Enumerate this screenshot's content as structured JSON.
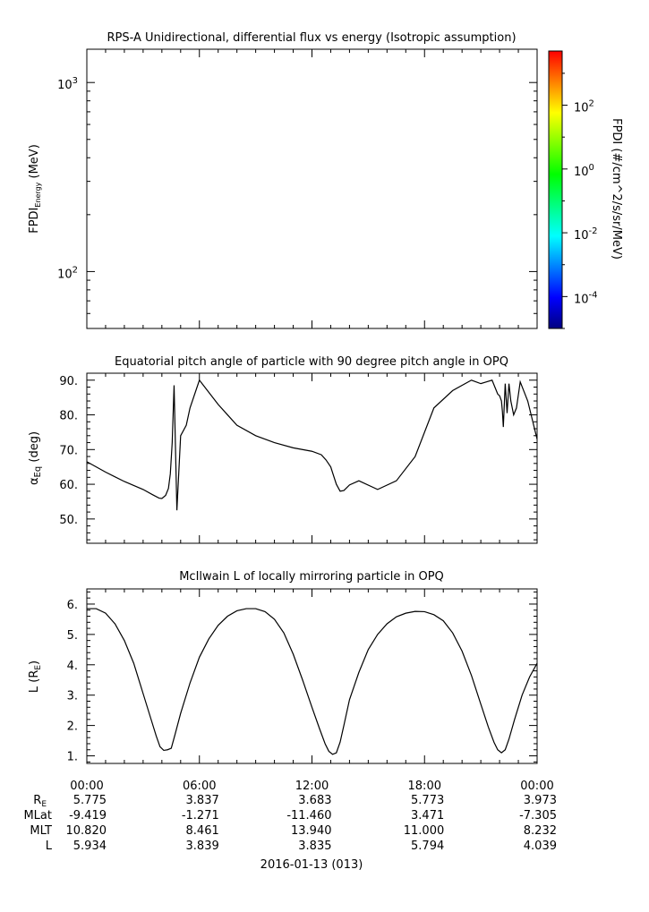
{
  "chart_data": [
    {
      "type": "heatmap",
      "title": "RPS-A Unidirectional, differential flux vs energy (Isotropic assumption)",
      "ylabel_main": "FPDI",
      "ylabel_sub": "Energy",
      "ylabel_unit": " (MeV)",
      "yscale": "log",
      "ylim": [
        50,
        1500
      ],
      "yticks": [
        {
          "value": 100,
          "base": "10",
          "exp": "2"
        },
        {
          "value": 1000,
          "base": "10",
          "exp": "3"
        }
      ],
      "colorbar": {
        "label": "FPDI (#/cm^2/s/sr/MeV)",
        "scale": "log",
        "range": [
          1e-05,
          5000
        ],
        "ticks": [
          {
            "value": 0.0001,
            "base": "10",
            "exp": "-4"
          },
          {
            "value": 0.01,
            "base": "10",
            "exp": "-2"
          },
          {
            "value": 1,
            "base": "10",
            "exp": "0"
          },
          {
            "value": 100,
            "base": "10",
            "exp": "2"
          }
        ]
      }
    },
    {
      "type": "line",
      "title": "Equatorial pitch angle of particle with 90 degree pitch angle in OPQ",
      "ylabel_main": "α",
      "ylabel_sub": "Eq",
      "ylabel_unit": " (deg)",
      "ylim": [
        43,
        92
      ],
      "yticks": [
        "50.",
        "60.",
        "70.",
        "80.",
        "90."
      ],
      "ytick_values": [
        50,
        60,
        70,
        80,
        90
      ],
      "x": [
        0,
        1,
        2,
        3,
        3.5,
        3.85,
        4.0,
        4.2,
        4.35,
        4.45,
        4.55,
        4.65,
        4.8,
        5.0,
        5.3,
        5.5,
        6,
        7,
        8,
        9,
        10,
        11,
        12,
        12.5,
        12.75,
        13.0,
        13.15,
        13.3,
        13.5,
        13.7,
        14.0,
        14.5,
        15.5,
        16.5,
        17.5,
        18.5,
        19.5,
        20.5,
        21.0,
        21.3,
        21.6,
        21.9,
        22.0,
        22.1,
        22.15,
        22.2,
        22.3,
        22.4,
        22.5,
        22.6,
        22.75,
        22.9,
        23.1,
        23.5,
        24
      ],
      "values": [
        66.5,
        63.5,
        60.8,
        58.5,
        57.0,
        56.0,
        55.9,
        56.8,
        58.8,
        63.0,
        72.0,
        88.5,
        52.5,
        74.0,
        77.0,
        82.0,
        90.0,
        83.0,
        77.0,
        74.0,
        72.0,
        70.5,
        69.5,
        68.5,
        67.0,
        65.0,
        62.5,
        60.0,
        58.0,
        58.2,
        59.8,
        61.0,
        58.5,
        61.0,
        68.0,
        82.0,
        87.0,
        90.0,
        89.0,
        89.5,
        90.0,
        86.0,
        85.5,
        84.0,
        81.0,
        76.5,
        89.0,
        80.5,
        89.0,
        84.0,
        80.0,
        82.0,
        89.5,
        84.0,
        73.0
      ]
    },
    {
      "type": "line",
      "title": "McIlwain L of locally mirroring particle in OPQ",
      "ylabel_main": "L (R",
      "ylabel_sub": "E",
      "ylabel_unit": ")",
      "ylim": [
        0.75,
        6.5
      ],
      "yticks": [
        "1.",
        "2.",
        "3.",
        "4.",
        "5.",
        "6."
      ],
      "ytick_values": [
        1,
        2,
        3,
        4,
        5,
        6
      ],
      "x": [
        0,
        0.5,
        1,
        1.5,
        2,
        2.5,
        3,
        3.4,
        3.7,
        3.9,
        4.1,
        4.3,
        4.5,
        4.7,
        5,
        5.5,
        6,
        6.5,
        7,
        7.5,
        8,
        8.5,
        9,
        9.5,
        10,
        10.5,
        11,
        11.5,
        12,
        12.4,
        12.7,
        12.9,
        13.1,
        13.3,
        13.5,
        13.7,
        14,
        14.5,
        15,
        15.5,
        16,
        16.5,
        17,
        17.5,
        18,
        18.5,
        19,
        19.5,
        20,
        20.5,
        21,
        21.4,
        21.7,
        21.9,
        22.1,
        22.3,
        22.5,
        22.8,
        23.2,
        23.6,
        24
      ],
      "values": [
        5.85,
        5.85,
        5.7,
        5.35,
        4.8,
        4.05,
        3.05,
        2.25,
        1.65,
        1.3,
        1.18,
        1.2,
        1.25,
        1.7,
        2.4,
        3.4,
        4.25,
        4.85,
        5.3,
        5.6,
        5.78,
        5.85,
        5.85,
        5.75,
        5.5,
        5.05,
        4.35,
        3.5,
        2.6,
        1.9,
        1.4,
        1.15,
        1.05,
        1.1,
        1.45,
        2.0,
        2.85,
        3.75,
        4.5,
        5.0,
        5.35,
        5.58,
        5.7,
        5.76,
        5.75,
        5.65,
        5.45,
        5.05,
        4.45,
        3.65,
        2.7,
        1.95,
        1.45,
        1.2,
        1.1,
        1.2,
        1.55,
        2.2,
        3.0,
        3.6,
        4.05
      ]
    }
  ],
  "xaxis": {
    "range_hours": [
      0,
      24
    ],
    "ticks": [
      {
        "value": 0,
        "label": "00:00"
      },
      {
        "value": 6,
        "label": "06:00"
      },
      {
        "value": 12,
        "label": "12:00"
      },
      {
        "value": 18,
        "label": "18:00"
      },
      {
        "value": 24,
        "label": "00:00"
      }
    ],
    "date_label": "2016-01-13 (013)",
    "ephemeris": [
      {
        "label": "R",
        "sub": "E",
        "values": [
          "5.775",
          "3.837",
          "3.683",
          "5.773",
          "3.973"
        ]
      },
      {
        "label": "MLat",
        "sub": "",
        "values": [
          "-9.419",
          "-1.271",
          "-11.460",
          "3.471",
          "-7.305"
        ]
      },
      {
        "label": "MLT",
        "sub": "",
        "values": [
          "10.820",
          "8.461",
          "13.940",
          "11.000",
          "8.232"
        ]
      },
      {
        "label": "L",
        "sub": "",
        "values": [
          "5.934",
          "3.839",
          "3.835",
          "5.794",
          "4.039"
        ]
      }
    ]
  },
  "colors": {
    "axis": "#000000",
    "line": "#000000",
    "colormap": [
      "#000080",
      "#0000ff",
      "#0080ff",
      "#00ffff",
      "#00ff80",
      "#00ff00",
      "#80ff00",
      "#ffff00",
      "#ff8000",
      "#ff0000"
    ]
  }
}
